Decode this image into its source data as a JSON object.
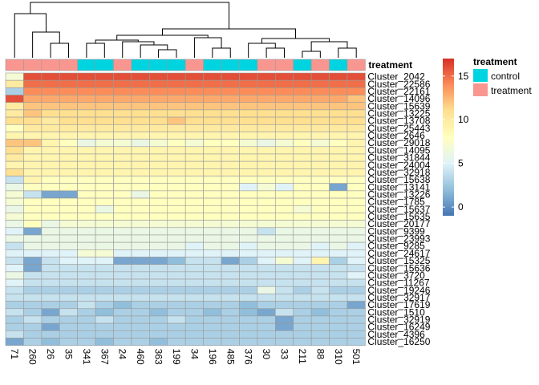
{
  "chart_data": {
    "type": "heatmap",
    "title": "",
    "columns": [
      "71",
      "260",
      "26",
      "35",
      "341",
      "367",
      "24",
      "460",
      "363",
      "199",
      "34",
      "196",
      "485",
      "376",
      "30",
      "33",
      "211",
      "88",
      "310",
      "501"
    ],
    "rows": [
      "Cluster_2042",
      "Cluster_22586",
      "Cluster_22161",
      "Cluster_14096",
      "Cluster_15639",
      "Cluster_13225",
      "Cluster_13708",
      "Cluster_25443",
      "Cluster_2646",
      "Cluster_29018",
      "Cluster_14095",
      "Cluster_31844",
      "Cluster_24004",
      "Cluster_32918",
      "Cluster_15638",
      "Cluster_13141",
      "Cluster_13226",
      "Cluster_1785",
      "Cluster_15637",
      "Cluster_15635",
      "Cluster_20177",
      "Cluster_9399",
      "Cluster_23993",
      "Cluster_9285",
      "Cluster_24617",
      "Cluster_15325",
      "Cluster_15636",
      "Cluster_3720",
      "Cluster_11267",
      "Cluster_19246",
      "Cluster_32917",
      "Cluster_17619",
      "Cluster_1510",
      "Cluster_32919",
      "Cluster_16249",
      "Cluster_4396",
      "Cluster_16250"
    ],
    "values": [
      [
        7,
        16,
        16,
        16,
        16,
        16,
        16,
        16,
        16,
        16,
        16,
        16,
        16,
        16,
        16,
        16,
        16,
        16,
        16,
        16
      ],
      [
        10,
        15,
        15,
        15,
        15,
        15,
        15,
        15,
        15,
        15,
        15,
        15,
        15,
        15,
        15,
        15,
        15,
        15,
        15,
        15
      ],
      [
        3,
        14,
        14,
        14,
        14,
        14,
        14,
        14,
        14,
        14,
        14,
        14,
        14,
        14,
        14,
        14,
        14,
        14,
        14,
        14
      ],
      [
        16,
        13,
        13,
        13,
        13,
        13,
        13,
        13,
        13,
        13,
        13,
        13,
        13,
        13,
        13,
        13,
        13,
        13,
        13,
        12
      ],
      [
        10,
        12,
        12,
        12,
        12,
        12,
        12,
        12,
        12,
        12,
        12,
        12,
        12,
        12,
        12,
        12,
        12,
        12,
        12,
        12
      ],
      [
        10,
        12,
        11,
        11,
        11,
        11,
        11,
        11,
        11,
        11,
        11,
        11,
        11,
        11,
        11,
        11,
        11,
        11,
        11,
        11
      ],
      [
        11,
        11,
        10,
        11,
        11,
        11,
        11,
        11,
        11,
        12,
        11,
        11,
        11,
        11,
        11,
        11,
        11,
        11,
        11,
        11
      ],
      [
        8,
        10,
        10,
        10,
        10,
        10,
        10,
        10,
        10,
        10,
        10,
        10,
        10,
        10,
        10,
        10,
        10,
        10,
        10,
        10
      ],
      [
        9,
        9,
        9,
        9,
        9,
        9,
        9,
        9,
        9,
        9,
        9,
        9,
        9,
        9,
        9,
        9,
        9,
        9,
        9,
        9
      ],
      [
        12,
        12,
        9,
        8,
        6,
        7,
        7,
        6,
        7,
        8,
        7,
        8,
        8,
        7,
        6,
        7,
        8,
        7,
        8,
        9
      ],
      [
        11,
        9,
        9,
        9,
        9,
        9,
        9,
        9,
        9,
        9,
        9,
        9,
        9,
        9,
        9,
        9,
        9,
        9,
        9,
        9
      ],
      [
        10,
        9,
        9,
        9,
        9,
        9,
        9,
        9,
        9,
        9,
        9,
        9,
        9,
        9,
        9,
        9,
        9,
        9,
        9,
        9
      ],
      [
        9,
        9,
        9,
        9,
        9,
        9,
        9,
        9,
        9,
        9,
        9,
        9,
        9,
        9,
        9,
        9,
        9,
        9,
        9,
        9
      ],
      [
        11,
        9,
        9,
        9,
        9,
        9,
        9,
        9,
        9,
        9,
        9,
        9,
        9,
        9,
        9,
        9,
        9,
        9,
        9,
        9
      ],
      [
        4,
        9,
        8,
        8,
        8,
        8,
        8,
        8,
        8,
        8,
        8,
        8,
        8,
        8,
        8,
        8,
        8,
        8,
        8,
        8
      ],
      [
        6,
        8,
        8,
        8,
        8,
        8,
        8,
        8,
        8,
        8,
        8,
        8,
        8,
        5,
        7,
        5,
        8,
        8,
        1,
        8
      ],
      [
        7,
        4,
        1,
        1,
        8,
        8,
        8,
        6,
        8,
        8,
        8,
        8,
        8,
        8,
        8,
        8,
        8,
        8,
        8,
        8
      ],
      [
        7,
        8,
        8,
        8,
        8,
        8,
        8,
        8,
        8,
        8,
        8,
        8,
        8,
        8,
        8,
        8,
        8,
        8,
        8,
        8
      ],
      [
        6,
        8,
        8,
        8,
        8,
        6,
        8,
        8,
        8,
        8,
        8,
        8,
        8,
        8,
        8,
        8,
        7,
        8,
        8,
        8
      ],
      [
        7,
        8,
        8,
        8,
        8,
        8,
        8,
        8,
        8,
        8,
        8,
        8,
        8,
        8,
        8,
        8,
        8,
        8,
        8,
        8
      ],
      [
        6,
        8,
        6,
        7,
        7,
        7,
        7,
        7,
        7,
        7,
        7,
        7,
        7,
        7,
        7,
        7,
        7,
        7,
        7,
        7
      ],
      [
        5,
        1,
        6,
        6,
        6,
        6,
        6,
        6,
        6,
        6,
        6,
        6,
        6,
        6,
        4,
        6,
        6,
        6,
        6,
        6
      ],
      [
        6,
        6,
        6,
        6,
        6,
        6,
        6,
        6,
        6,
        6,
        6,
        6,
        6,
        6,
        6,
        6,
        6,
        6,
        6,
        6
      ],
      [
        4,
        6,
        6,
        6,
        6,
        6,
        6,
        6,
        6,
        6,
        5,
        6,
        6,
        5,
        6,
        6,
        6,
        5,
        6,
        5
      ],
      [
        5,
        5,
        5,
        5,
        7,
        7,
        5,
        5,
        5,
        5,
        5,
        5,
        5,
        5,
        5,
        5,
        5,
        5,
        5,
        5
      ],
      [
        4,
        1,
        4,
        5,
        5,
        5,
        1,
        1,
        1,
        2,
        4,
        4,
        1,
        3,
        5,
        7,
        5,
        9,
        3,
        5
      ],
      [
        5,
        1,
        4,
        4,
        4,
        4,
        4,
        4,
        4,
        4,
        4,
        4,
        4,
        4,
        4,
        4,
        4,
        4,
        4,
        4
      ],
      [
        6,
        4,
        4,
        4,
        4,
        4,
        4,
        4,
        4,
        4,
        4,
        4,
        4,
        4,
        4,
        4,
        4,
        4,
        4,
        5
      ],
      [
        5,
        4,
        4,
        4,
        4,
        4,
        4,
        4,
        4,
        4,
        4,
        4,
        4,
        4,
        4,
        4,
        4,
        4,
        4,
        4
      ],
      [
        4,
        3,
        3,
        3,
        3,
        3,
        3,
        3,
        3,
        3,
        3,
        3,
        3,
        3,
        6,
        4,
        3,
        4,
        3,
        3
      ],
      [
        4,
        4,
        4,
        4,
        4,
        4,
        4,
        4,
        4,
        4,
        4,
        4,
        4,
        4,
        4,
        4,
        4,
        4,
        4,
        4
      ],
      [
        3,
        3,
        3,
        3,
        4,
        3,
        2,
        3,
        3,
        3,
        3,
        3,
        3,
        2,
        3,
        3,
        3,
        3,
        3,
        1
      ],
      [
        4,
        3,
        1,
        4,
        3,
        2,
        3,
        3,
        2,
        3,
        3,
        2,
        3,
        2,
        1,
        4,
        3,
        2,
        3,
        3
      ],
      [
        3,
        4,
        3,
        3,
        3,
        4,
        3,
        3,
        3,
        4,
        3,
        3,
        3,
        3,
        3,
        1,
        3,
        3,
        3,
        3
      ],
      [
        3,
        3,
        1,
        3,
        3,
        3,
        3,
        3,
        3,
        3,
        3,
        3,
        3,
        3,
        3,
        1,
        3,
        3,
        3,
        3
      ],
      [
        4,
        3,
        3,
        3,
        3,
        3,
        3,
        3,
        3,
        3,
        3,
        3,
        3,
        3,
        3,
        3,
        3,
        3,
        3,
        3
      ],
      [
        1,
        3,
        2,
        3,
        3,
        2,
        3,
        3,
        2,
        3,
        3,
        3,
        3,
        3,
        3,
        3,
        3,
        3,
        3,
        3
      ]
    ],
    "column_annotation": {
      "name": "treatment",
      "values": [
        "treatment",
        "treatment",
        "treatment",
        "treatment",
        "control",
        "control",
        "treatment",
        "control",
        "control",
        "control",
        "treatment",
        "control",
        "control",
        "control",
        "treatment",
        "treatment",
        "control",
        "treatment",
        "control",
        "treatment"
      ]
    },
    "annotation_colors": {
      "control": "#00D4E0",
      "treatment": "#FA9690"
    },
    "color_scale": {
      "min": -1,
      "max": 17,
      "stops": [
        "#4575B4",
        "#91BFDB",
        "#E0F3F8",
        "#FFFFBF",
        "#FEE090",
        "#FC8D59",
        "#D73027"
      ],
      "ticks": [
        0,
        5,
        10,
        15
      ]
    },
    "legend": {
      "title": "treatment",
      "items": [
        "control",
        "treatment"
      ],
      "placement": "right"
    },
    "column_dendrogram": true
  }
}
